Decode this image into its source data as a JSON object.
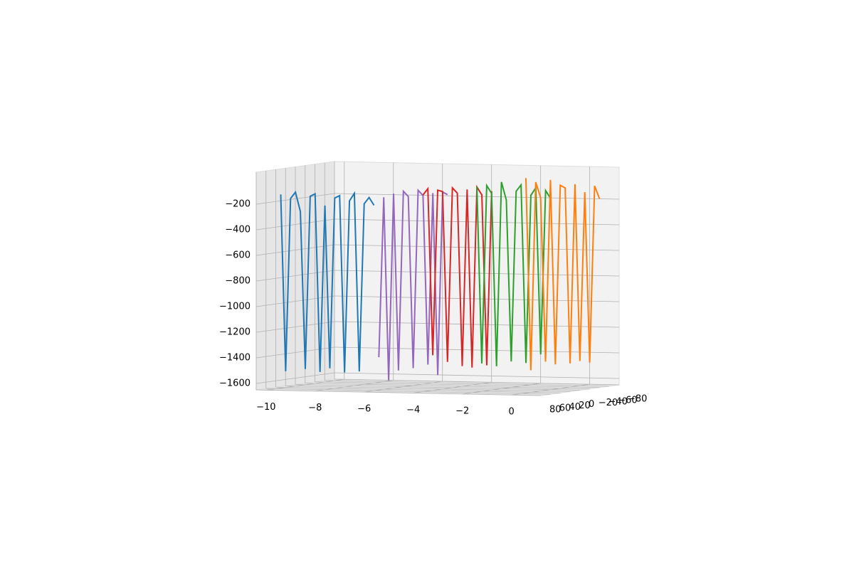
{
  "chart_data": {
    "type": "line3d",
    "xlim": [
      -10.4,
      1.2
    ],
    "ylim": [
      80,
      -80
    ],
    "zlim": [
      -1650,
      50
    ],
    "xticks": [
      {
        "value": -10,
        "label": "−10"
      },
      {
        "value": -8,
        "label": "−8"
      },
      {
        "value": -6,
        "label": "−6"
      },
      {
        "value": -4,
        "label": "−4"
      },
      {
        "value": -2,
        "label": "−2"
      },
      0
    ],
    "yticks": [
      80,
      60,
      40,
      20,
      0,
      {
        "value": -20,
        "label": "−20"
      },
      {
        "value": -40,
        "label": "−40"
      },
      {
        "value": -60,
        "label": "−60"
      },
      {
        "value": -80,
        "label": "−80"
      }
    ],
    "zticks": [
      {
        "value": -1600,
        "label": "−1600"
      },
      {
        "value": -1400,
        "label": "−1400"
      },
      {
        "value": -1200,
        "label": "−1200"
      },
      {
        "value": -1000,
        "label": "−1000"
      },
      {
        "value": -800,
        "label": "−800"
      },
      {
        "value": -600,
        "label": "−600"
      },
      {
        "value": -400,
        "label": "−400"
      },
      {
        "value": -200,
        "label": "−200"
      }
    ],
    "grid": true,
    "series": [
      {
        "color": "#1f77b4",
        "y": 80,
        "x": [
          -9.4,
          -9.2,
          -9.0,
          -8.8,
          -8.6,
          -8.4,
          -8.2,
          -8.0,
          -7.8,
          -7.6,
          -7.4,
          -7.2,
          -7.0,
          -6.8,
          -6.6,
          -6.4,
          -6.2,
          -6.0,
          -5.8,
          -5.6
        ],
        "z": [
          -120,
          -1500,
          -150,
          -100,
          -250,
          -1480,
          -130,
          -110,
          -1500,
          -200,
          -1470,
          -140,
          -120,
          -1500,
          -160,
          -100,
          -1490,
          -180,
          -130,
          -190
        ]
      },
      {
        "color": "#9467bd",
        "y": 40,
        "x": [
          -6.2,
          -6.0,
          -5.8,
          -5.6,
          -5.4,
          -5.2,
          -5.0,
          -4.8,
          -4.6,
          -4.4,
          -4.2,
          -4.0,
          -3.8,
          -3.6,
          -3.4
        ],
        "z": [
          -1400,
          -150,
          -1580,
          -120,
          -1500,
          -100,
          -140,
          -1480,
          -90,
          -130,
          -1450,
          -110,
          -1530,
          -100,
          -120
        ]
      },
      {
        "color": "#d62728",
        "y": 0,
        "x": [
          -5.2,
          -5.0,
          -4.8,
          -4.6,
          -4.4,
          -4.2,
          -4.0,
          -3.8,
          -3.6,
          -3.4,
          -3.2,
          -3.0,
          -2.8,
          -2.6,
          -2.4
        ],
        "z": [
          -150,
          -100,
          -1400,
          -110,
          -120,
          -1450,
          -90,
          -130,
          -1480,
          -100,
          -1490,
          -80,
          -140,
          -1470,
          -110
        ]
      },
      {
        "color": "#2ca02c",
        "y": -40,
        "x": [
          -3.8,
          -3.6,
          -3.4,
          -3.2,
          -3.0,
          -2.8,
          -2.6,
          -2.4,
          -2.2,
          -2.0,
          -1.8,
          -1.6,
          -1.4,
          -1.2,
          -1.0,
          -0.8
        ],
        "z": [
          -100,
          -1480,
          -90,
          -150,
          -1500,
          -60,
          -200,
          -1460,
          -130,
          -80,
          -1470,
          -160,
          -100,
          -1400,
          -120,
          -180
        ]
      },
      {
        "color": "#ff7f0e",
        "y": -80,
        "x": [
          -2.6,
          -2.4,
          -2.2,
          -2.0,
          -1.8,
          -1.6,
          -1.4,
          -1.2,
          -1.0,
          -0.8,
          -0.6,
          -0.4,
          -0.2,
          0,
          0.2,
          0.4
        ],
        "z": [
          -50,
          -1550,
          -80,
          -200,
          -1480,
          -60,
          -1500,
          -100,
          -120,
          -1490,
          -90,
          -1470,
          -150,
          -1480,
          -100,
          -200
        ]
      }
    ]
  }
}
